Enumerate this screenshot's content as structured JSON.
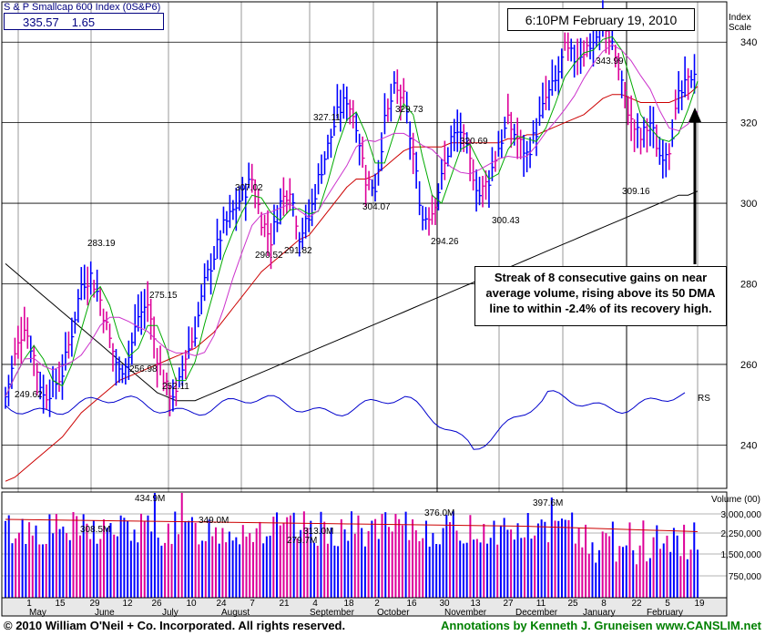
{
  "header": {
    "title": "S & P Smallcap 600 Index",
    "symbol": "(0S&P6)",
    "price": "335.57",
    "change": "1.65",
    "timestamp": "6:10PM February 19, 2010",
    "scale_label_1": "Index",
    "scale_label_2": "Scale"
  },
  "annotation": "Streak of 8 consecutive gains on near average volume, rising above its 50 DMA line to within -2.4% of its recovery high.",
  "footer": {
    "copyright": "© 2010 William O'Neil + Co. Incorporated. All rights reserved.",
    "credit": "Annotations by Kenneth J. Gruneisen www.CANSLIM.net"
  },
  "chart_data": {
    "type": "line",
    "price_axis": {
      "ticks": [
        240,
        260,
        280,
        300,
        320,
        340
      ],
      "ylim": [
        229,
        350
      ]
    },
    "volume_axis": {
      "label": "Volume (00)",
      "ticks": [
        "3,000,000",
        "2,250,000",
        "1,500,000",
        "750,000"
      ]
    },
    "month_labels": [
      "May",
      "June",
      "July",
      "August",
      "September",
      "October",
      "November",
      "December",
      "January",
      "February"
    ],
    "day_labels": [
      "1",
      "15",
      "29",
      "12",
      "26",
      "10",
      "24",
      "7",
      "21",
      "4",
      "18",
      "2",
      "16",
      "30",
      "13",
      "27",
      "11",
      "25",
      "8",
      "22",
      "5",
      "19"
    ],
    "price_labels": [
      {
        "text": "249.62",
        "value": 249.62
      },
      {
        "text": "283.19",
        "value": 283.19
      },
      {
        "text": "256.98",
        "value": 256.98
      },
      {
        "text": "275.15",
        "value": 275.15
      },
      {
        "text": "252.11",
        "value": 252.11
      },
      {
        "text": "307.02",
        "value": 307.02
      },
      {
        "text": "290.52",
        "value": 290.52
      },
      {
        "text": "291.82",
        "value": 291.82
      },
      {
        "text": "327.11",
        "value": 327.11
      },
      {
        "text": "304.07",
        "value": 304.07
      },
      {
        "text": "329.73",
        "value": 329.73
      },
      {
        "text": "294.26",
        "value": 294.26
      },
      {
        "text": "320.69",
        "value": 320.69
      },
      {
        "text": "300.43",
        "value": 300.43
      },
      {
        "text": "343.99",
        "value": 343.99
      },
      {
        "text": "309.16",
        "value": 309.16
      }
    ],
    "volume_labels": [
      "434.9M",
      "308.5M",
      "349.0M",
      "279.7M",
      "313.0M",
      "376.0M",
      "397.6M"
    ],
    "rs_label": "RS",
    "colors": {
      "up": "#0000ff",
      "down": "#dd0099",
      "ma50": "#cc0000",
      "ma200": "#000000",
      "ma10": "#00aa00",
      "ma21": "#cc33cc",
      "rs": "#0000cc"
    },
    "price_path": [
      252,
      262,
      270,
      262,
      252,
      254,
      258,
      268,
      280,
      282,
      276,
      266,
      258,
      262,
      272,
      275,
      262,
      254,
      252,
      262,
      268,
      280,
      287,
      294,
      298,
      302,
      306,
      296,
      291,
      300,
      304,
      292,
      296,
      306,
      314,
      322,
      326,
      320,
      306,
      304,
      320,
      328,
      326,
      312,
      296,
      298,
      306,
      316,
      318,
      310,
      302,
      306,
      314,
      320,
      316,
      312,
      318,
      326,
      330,
      338,
      336,
      338,
      340,
      344,
      340,
      330,
      320,
      316,
      320,
      312,
      314,
      326,
      330,
      335
    ]
  }
}
